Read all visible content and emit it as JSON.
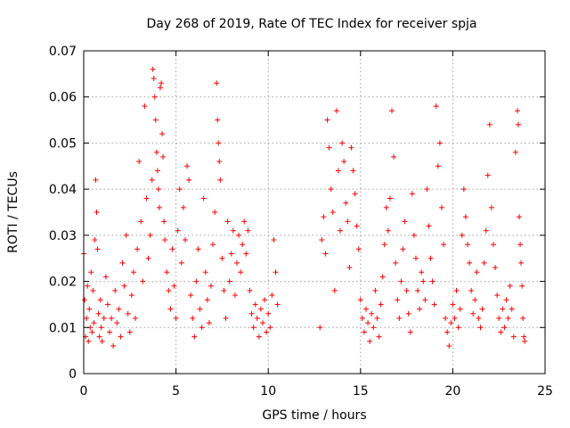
{
  "chart_data": {
    "type": "scatter",
    "title": "Day 268 of 2019, Rate Of TEC Index for receiver spja",
    "xlabel": "GPS time / hours",
    "ylabel": "ROTI / TECUs",
    "xlim": [
      0,
      25
    ],
    "ylim": [
      0,
      0.07
    ],
    "xticks": [
      0,
      5,
      10,
      15,
      20,
      25
    ],
    "xtick_labels": [
      "0",
      "5",
      "10",
      "15",
      "20",
      "25"
    ],
    "yticks": [
      0,
      0.01,
      0.02,
      0.03,
      0.04,
      0.05,
      0.06,
      0.07
    ],
    "ytick_labels": [
      "0",
      "0.01",
      "0.02",
      "0.03",
      "0.04",
      "0.05",
      "0.06",
      "0.07"
    ],
    "grid": true,
    "marker": "+",
    "color": "#ff0000",
    "series": [
      {
        "name": "ROTI",
        "points": [
          [
            0.0,
            0.026
          ],
          [
            0.05,
            0.016
          ],
          [
            0.1,
            0.008
          ],
          [
            0.15,
            0.012
          ],
          [
            0.2,
            0.019
          ],
          [
            0.25,
            0.007
          ],
          [
            0.3,
            0.014
          ],
          [
            0.35,
            0.01
          ],
          [
            0.4,
            0.022
          ],
          [
            0.45,
            0.009
          ],
          [
            0.5,
            0.018
          ],
          [
            0.55,
            0.011
          ],
          [
            0.6,
            0.029
          ],
          [
            0.65,
            0.042
          ],
          [
            0.7,
            0.035
          ],
          [
            0.75,
            0.027
          ],
          [
            0.8,
            0.013
          ],
          [
            0.85,
            0.008
          ],
          [
            0.9,
            0.016
          ],
          [
            0.95,
            0.01
          ],
          [
            1.0,
            0.007
          ],
          [
            1.1,
            0.012
          ],
          [
            1.2,
            0.021
          ],
          [
            1.3,
            0.015
          ],
          [
            1.4,
            0.009
          ],
          [
            1.5,
            0.012
          ],
          [
            1.6,
            0.006
          ],
          [
            1.7,
            0.018
          ],
          [
            1.8,
            0.011
          ],
          [
            1.9,
            0.014
          ],
          [
            2.0,
            0.008
          ],
          [
            2.1,
            0.024
          ],
          [
            2.2,
            0.019
          ],
          [
            2.3,
            0.03
          ],
          [
            2.4,
            0.013
          ],
          [
            2.5,
            0.009
          ],
          [
            2.6,
            0.017
          ],
          [
            2.7,
            0.022
          ],
          [
            2.8,
            0.012
          ],
          [
            2.9,
            0.027
          ],
          [
            3.0,
            0.046
          ],
          [
            3.1,
            0.033
          ],
          [
            3.2,
            0.02
          ],
          [
            3.3,
            0.058
          ],
          [
            3.4,
            0.038
          ],
          [
            3.5,
            0.025
          ],
          [
            3.6,
            0.03
          ],
          [
            3.7,
            0.042
          ],
          [
            3.75,
            0.066
          ],
          [
            3.8,
            0.064
          ],
          [
            3.85,
            0.06
          ],
          [
            3.9,
            0.055
          ],
          [
            3.95,
            0.048
          ],
          [
            4.0,
            0.044
          ],
          [
            4.05,
            0.04
          ],
          [
            4.1,
            0.036
          ],
          [
            4.15,
            0.062
          ],
          [
            4.2,
            0.063
          ],
          [
            4.25,
            0.052
          ],
          [
            4.3,
            0.047
          ],
          [
            4.35,
            0.033
          ],
          [
            4.4,
            0.029
          ],
          [
            4.5,
            0.022
          ],
          [
            4.6,
            0.018
          ],
          [
            4.7,
            0.014
          ],
          [
            4.8,
            0.027
          ],
          [
            4.9,
            0.019
          ],
          [
            5.0,
            0.012
          ],
          [
            5.1,
            0.031
          ],
          [
            5.2,
            0.04
          ],
          [
            5.3,
            0.024
          ],
          [
            5.4,
            0.036
          ],
          [
            5.5,
            0.029
          ],
          [
            5.6,
            0.045
          ],
          [
            5.7,
            0.042
          ],
          [
            5.8,
            0.017
          ],
          [
            5.9,
            0.012
          ],
          [
            6.0,
            0.008
          ],
          [
            6.1,
            0.02
          ],
          [
            6.2,
            0.027
          ],
          [
            6.3,
            0.014
          ],
          [
            6.4,
            0.01
          ],
          [
            6.5,
            0.038
          ],
          [
            6.6,
            0.022
          ],
          [
            6.7,
            0.016
          ],
          [
            6.8,
            0.011
          ],
          [
            6.9,
            0.019
          ],
          [
            7.0,
            0.028
          ],
          [
            7.1,
            0.035
          ],
          [
            7.2,
            0.063
          ],
          [
            7.25,
            0.055
          ],
          [
            7.3,
            0.05
          ],
          [
            7.35,
            0.046
          ],
          [
            7.4,
            0.042
          ],
          [
            7.5,
            0.025
          ],
          [
            7.6,
            0.018
          ],
          [
            7.7,
            0.012
          ],
          [
            7.8,
            0.033
          ],
          [
            7.9,
            0.02
          ],
          [
            8.0,
            0.026
          ],
          [
            8.1,
            0.031
          ],
          [
            8.2,
            0.017
          ],
          [
            8.3,
            0.024
          ],
          [
            8.4,
            0.03
          ],
          [
            8.5,
            0.022
          ],
          [
            8.6,
            0.028
          ],
          [
            8.7,
            0.033
          ],
          [
            8.8,
            0.026
          ],
          [
            8.9,
            0.031
          ],
          [
            9.0,
            0.018
          ],
          [
            9.1,
            0.013
          ],
          [
            9.2,
            0.01
          ],
          [
            9.3,
            0.015
          ],
          [
            9.4,
            0.012
          ],
          [
            9.5,
            0.008
          ],
          [
            9.6,
            0.014
          ],
          [
            9.7,
            0.011
          ],
          [
            9.8,
            0.016
          ],
          [
            9.9,
            0.009
          ],
          [
            10.0,
            0.013
          ],
          [
            10.1,
            0.01
          ],
          [
            10.2,
            0.017
          ],
          [
            10.3,
            0.029
          ],
          [
            10.4,
            0.022
          ],
          [
            10.5,
            0.015
          ],
          [
            12.8,
            0.01
          ],
          [
            12.9,
            0.029
          ],
          [
            13.0,
            0.034
          ],
          [
            13.1,
            0.026
          ],
          [
            13.2,
            0.055
          ],
          [
            13.3,
            0.049
          ],
          [
            13.4,
            0.04
          ],
          [
            13.5,
            0.035
          ],
          [
            13.6,
            0.018
          ],
          [
            13.7,
            0.057
          ],
          [
            13.8,
            0.044
          ],
          [
            13.9,
            0.031
          ],
          [
            14.0,
            0.05
          ],
          [
            14.1,
            0.046
          ],
          [
            14.2,
            0.037
          ],
          [
            14.3,
            0.033
          ],
          [
            14.4,
            0.023
          ],
          [
            14.5,
            0.049
          ],
          [
            14.6,
            0.044
          ],
          [
            14.7,
            0.039
          ],
          [
            14.8,
            0.032
          ],
          [
            14.9,
            0.027
          ],
          [
            15.0,
            0.016
          ],
          [
            15.1,
            0.012
          ],
          [
            15.2,
            0.009
          ],
          [
            15.3,
            0.014
          ],
          [
            15.4,
            0.011
          ],
          [
            15.5,
            0.007
          ],
          [
            15.6,
            0.013
          ],
          [
            15.7,
            0.01
          ],
          [
            15.8,
            0.018
          ],
          [
            15.9,
            0.012
          ],
          [
            16.0,
            0.008
          ],
          [
            16.1,
            0.015
          ],
          [
            16.2,
            0.021
          ],
          [
            16.3,
            0.028
          ],
          [
            16.4,
            0.036
          ],
          [
            16.5,
            0.031
          ],
          [
            16.6,
            0.038
          ],
          [
            16.7,
            0.057
          ],
          [
            16.8,
            0.047
          ],
          [
            16.9,
            0.024
          ],
          [
            17.0,
            0.016
          ],
          [
            17.1,
            0.012
          ],
          [
            17.2,
            0.02
          ],
          [
            17.3,
            0.027
          ],
          [
            17.4,
            0.033
          ],
          [
            17.5,
            0.018
          ],
          [
            17.6,
            0.013
          ],
          [
            17.7,
            0.009
          ],
          [
            17.8,
            0.039
          ],
          [
            17.9,
            0.03
          ],
          [
            18.0,
            0.025
          ],
          [
            18.1,
            0.018
          ],
          [
            18.2,
            0.014
          ],
          [
            18.3,
            0.022
          ],
          [
            18.4,
            0.02
          ],
          [
            18.5,
            0.016
          ],
          [
            18.6,
            0.04
          ],
          [
            18.7,
            0.032
          ],
          [
            18.8,
            0.025
          ],
          [
            18.9,
            0.02
          ],
          [
            19.0,
            0.015
          ],
          [
            19.1,
            0.058
          ],
          [
            19.2,
            0.045
          ],
          [
            19.3,
            0.05
          ],
          [
            19.4,
            0.036
          ],
          [
            19.5,
            0.028
          ],
          [
            19.6,
            0.012
          ],
          [
            19.7,
            0.009
          ],
          [
            19.8,
            0.006
          ],
          [
            19.9,
            0.011
          ],
          [
            20.0,
            0.015
          ],
          [
            20.1,
            0.012
          ],
          [
            20.2,
            0.018
          ],
          [
            20.3,
            0.01
          ],
          [
            20.4,
            0.014
          ],
          [
            20.5,
            0.03
          ],
          [
            20.6,
            0.04
          ],
          [
            20.7,
            0.034
          ],
          [
            20.8,
            0.028
          ],
          [
            20.9,
            0.024
          ],
          [
            21.0,
            0.018
          ],
          [
            21.1,
            0.013
          ],
          [
            21.2,
            0.016
          ],
          [
            21.3,
            0.022
          ],
          [
            21.4,
            0.012
          ],
          [
            21.5,
            0.01
          ],
          [
            21.6,
            0.014
          ],
          [
            21.7,
            0.024
          ],
          [
            21.8,
            0.031
          ],
          [
            21.9,
            0.043
          ],
          [
            22.0,
            0.054
          ],
          [
            22.1,
            0.036
          ],
          [
            22.2,
            0.028
          ],
          [
            22.3,
            0.023
          ],
          [
            22.4,
            0.017
          ],
          [
            22.5,
            0.012
          ],
          [
            22.6,
            0.009
          ],
          [
            22.7,
            0.014
          ],
          [
            22.8,
            0.01
          ],
          [
            22.9,
            0.016
          ],
          [
            23.0,
            0.012
          ],
          [
            23.1,
            0.019
          ],
          [
            23.2,
            0.014
          ],
          [
            23.3,
            0.008
          ],
          [
            23.4,
            0.048
          ],
          [
            23.5,
            0.057
          ],
          [
            23.55,
            0.054
          ],
          [
            23.6,
            0.034
          ],
          [
            23.65,
            0.028
          ],
          [
            23.7,
            0.024
          ],
          [
            23.75,
            0.019
          ],
          [
            23.8,
            0.012
          ],
          [
            23.85,
            0.008
          ],
          [
            23.9,
            0.007
          ]
        ]
      }
    ]
  }
}
